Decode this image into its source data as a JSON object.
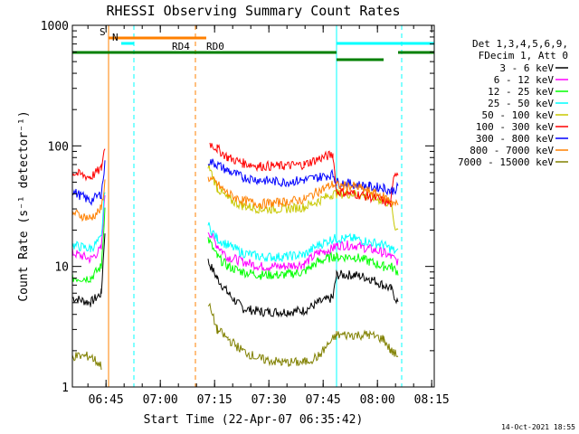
{
  "chart_data": {
    "type": "line",
    "title": "RHESSI Observing Summary Count Rates",
    "xlabel": "Start Time (22-Apr-07 06:35:42)",
    "ylabel": "Count Rate (s⁻¹ detector⁻¹)",
    "yscale": "log",
    "ylim": [
      1,
      1000
    ],
    "x_unit": "minutes after 06:35:42",
    "xlim": [
      0,
      100
    ],
    "x_ticks": [
      {
        "label": "06:45",
        "x": 9.3
      },
      {
        "label": "07:00",
        "x": 24.3
      },
      {
        "label": "07:15",
        "x": 39.3
      },
      {
        "label": "07:30",
        "x": 54.3
      },
      {
        "label": "07:45",
        "x": 69.3
      },
      {
        "label": "08:00",
        "x": 84.3
      },
      {
        "label": "08:15",
        "x": 99.3
      }
    ],
    "y_ticks": [
      {
        "label": "1",
        "y": 1
      },
      {
        "label": "10",
        "y": 10
      },
      {
        "label": "100",
        "y": 100
      },
      {
        "label": "1000",
        "y": 1000
      }
    ],
    "legend_header": [
      "Det 1,3,4,5,6,9,",
      "FDecim 1, Att 0"
    ],
    "series": [
      {
        "name": "3 - 6 keV",
        "color": "#000000",
        "points": [
          [
            0,
            5.5
          ],
          [
            5,
            5
          ],
          [
            8,
            6
          ],
          [
            9,
            20
          ],
          [
            10,
            null
          ],
          [
            37,
            null
          ],
          [
            37.5,
            11
          ],
          [
            40,
            8
          ],
          [
            43,
            6
          ],
          [
            47,
            4.5
          ],
          [
            52,
            4.2
          ],
          [
            58,
            4.2
          ],
          [
            64,
            4.3
          ],
          [
            68,
            5
          ],
          [
            72,
            5.5
          ],
          [
            73,
            8.5
          ],
          [
            78,
            8.5
          ],
          [
            82,
            8
          ],
          [
            86,
            7
          ],
          [
            88,
            6.5
          ],
          [
            90,
            5
          ]
        ]
      },
      {
        "name": "6 - 12 keV",
        "color": "#ff00ff",
        "points": [
          [
            0,
            13
          ],
          [
            5,
            11.5
          ],
          [
            8,
            14
          ],
          [
            9,
            40
          ],
          [
            10,
            null
          ],
          [
            37,
            null
          ],
          [
            37.5,
            20
          ],
          [
            40,
            15
          ],
          [
            43,
            12
          ],
          [
            47,
            11
          ],
          [
            52,
            10
          ],
          [
            58,
            10
          ],
          [
            64,
            10.5
          ],
          [
            68,
            13
          ],
          [
            72,
            14
          ],
          [
            73,
            15
          ],
          [
            78,
            15
          ],
          [
            82,
            14
          ],
          [
            86,
            13
          ],
          [
            88,
            12
          ],
          [
            90,
            11
          ]
        ]
      },
      {
        "name": "12 - 25 keV",
        "color": "#00ff00",
        "points": [
          [
            0,
            8
          ],
          [
            5,
            8
          ],
          [
            8,
            10
          ],
          [
            9,
            30
          ],
          [
            10,
            null
          ],
          [
            37,
            null
          ],
          [
            37.5,
            17
          ],
          [
            40,
            12
          ],
          [
            43,
            10
          ],
          [
            47,
            9
          ],
          [
            52,
            8.5
          ],
          [
            58,
            8.5
          ],
          [
            64,
            9
          ],
          [
            68,
            11
          ],
          [
            72,
            12
          ],
          [
            73,
            12
          ],
          [
            78,
            12
          ],
          [
            82,
            11
          ],
          [
            86,
            10
          ],
          [
            88,
            10
          ],
          [
            90,
            9
          ]
        ]
      },
      {
        "name": "25 - 50 keV",
        "color": "#00ffff",
        "points": [
          [
            0,
            15
          ],
          [
            5,
            14
          ],
          [
            8,
            17
          ],
          [
            9,
            45
          ],
          [
            10,
            null
          ],
          [
            37,
            null
          ],
          [
            37.5,
            22
          ],
          [
            40,
            17
          ],
          [
            43,
            15
          ],
          [
            47,
            13
          ],
          [
            52,
            12
          ],
          [
            58,
            12
          ],
          [
            64,
            12.5
          ],
          [
            68,
            15
          ],
          [
            72,
            17
          ],
          [
            73,
            17
          ],
          [
            78,
            17
          ],
          [
            82,
            16
          ],
          [
            86,
            15
          ],
          [
            88,
            14
          ],
          [
            90,
            13
          ]
        ]
      },
      {
        "name": "50 - 100 keV",
        "color": "#c8c800",
        "points": [
          [
            37,
            null
          ],
          [
            37.5,
            70
          ],
          [
            40,
            45
          ],
          [
            43,
            36
          ],
          [
            47,
            32
          ],
          [
            52,
            30
          ],
          [
            58,
            30
          ],
          [
            64,
            31
          ],
          [
            68,
            35
          ],
          [
            72,
            40
          ],
          [
            73,
            40
          ],
          [
            78,
            40
          ],
          [
            82,
            38
          ],
          [
            86,
            35
          ],
          [
            88,
            33
          ],
          [
            89,
            22
          ],
          [
            90,
            20
          ]
        ]
      },
      {
        "name": "100 - 300 keV",
        "color": "#ff0000",
        "points": [
          [
            0,
            60
          ],
          [
            5,
            55
          ],
          [
            8,
            65
          ],
          [
            9,
            100
          ],
          [
            10,
            null
          ],
          [
            37,
            null
          ],
          [
            38,
            105
          ],
          [
            40,
            95
          ],
          [
            43,
            80
          ],
          [
            47,
            72
          ],
          [
            52,
            68
          ],
          [
            58,
            68
          ],
          [
            64,
            70
          ],
          [
            68,
            78
          ],
          [
            72,
            85
          ],
          [
            73,
            42
          ],
          [
            78,
            40
          ],
          [
            82,
            38
          ],
          [
            86,
            35
          ],
          [
            88,
            33
          ],
          [
            89,
            60
          ],
          [
            90,
            60
          ]
        ]
      },
      {
        "name": "300 - 800 keV",
        "color": "#0000ff",
        "points": [
          [
            0,
            42
          ],
          [
            5,
            35
          ],
          [
            8,
            40
          ],
          [
            9,
            70
          ],
          [
            10,
            null
          ],
          [
            37,
            null
          ],
          [
            37.5,
            75
          ],
          [
            40,
            70
          ],
          [
            43,
            62
          ],
          [
            47,
            55
          ],
          [
            52,
            52
          ],
          [
            58,
            50
          ],
          [
            64,
            52
          ],
          [
            68,
            55
          ],
          [
            72,
            58
          ],
          [
            73,
            50
          ],
          [
            78,
            48
          ],
          [
            82,
            46
          ],
          [
            86,
            45
          ],
          [
            88,
            42
          ],
          [
            90,
            45
          ]
        ]
      },
      {
        "name": "800 - 7000 keV",
        "color": "#ff8000",
        "points": [
          [
            0,
            28
          ],
          [
            5,
            25
          ],
          [
            8,
            30
          ],
          [
            9,
            50
          ],
          [
            10,
            null
          ],
          [
            37,
            null
          ],
          [
            37.5,
            55
          ],
          [
            40,
            48
          ],
          [
            43,
            40
          ],
          [
            47,
            35
          ],
          [
            52,
            33
          ],
          [
            58,
            34
          ],
          [
            64,
            36
          ],
          [
            68,
            42
          ],
          [
            72,
            48
          ],
          [
            73,
            47
          ],
          [
            78,
            46
          ],
          [
            82,
            42
          ],
          [
            86,
            38
          ],
          [
            88,
            35
          ],
          [
            90,
            32
          ]
        ]
      },
      {
        "name": "7000 - 15000 keV",
        "color": "#808000",
        "points": [
          [
            0,
            1.8
          ],
          [
            5,
            1.8
          ],
          [
            8,
            1.5
          ],
          [
            10,
            null
          ],
          [
            37,
            null
          ],
          [
            37.5,
            5
          ],
          [
            40,
            3
          ],
          [
            43,
            2.5
          ],
          [
            47,
            2
          ],
          [
            52,
            1.7
          ],
          [
            58,
            1.6
          ],
          [
            64,
            1.6
          ],
          [
            68,
            1.8
          ],
          [
            72,
            2.5
          ],
          [
            73,
            2.7
          ],
          [
            78,
            2.7
          ],
          [
            82,
            2.7
          ],
          [
            86,
            2.5
          ],
          [
            88,
            2
          ],
          [
            90,
            1.8
          ]
        ]
      }
    ],
    "annotations": [
      {
        "label": "S",
        "color": "#ff8000",
        "x_start": 10,
        "x_end": 37
      },
      {
        "label": "N",
        "color": "#00ffff",
        "x_start": 13.5,
        "x_end": 17
      },
      {
        "label": "RD0",
        "color": "#008000",
        "x_start": 34,
        "x_end": 73
      },
      {
        "label": "RD4",
        "color": "#008000",
        "x_start": 0,
        "x_end": 34
      }
    ],
    "v_markers": [
      {
        "x": 10,
        "color": "#ff8000",
        "style": "solid"
      },
      {
        "x": 17,
        "color": "#00ffff",
        "style": "dashed"
      },
      {
        "x": 34,
        "color": "#ff8000",
        "style": "dashed"
      },
      {
        "x": 73,
        "color": "#00ffff",
        "style": "solid"
      },
      {
        "x": 91,
        "color": "#00ffff",
        "style": "dashed"
      }
    ]
  },
  "timestamp": "14-Oct-2021 18:55"
}
